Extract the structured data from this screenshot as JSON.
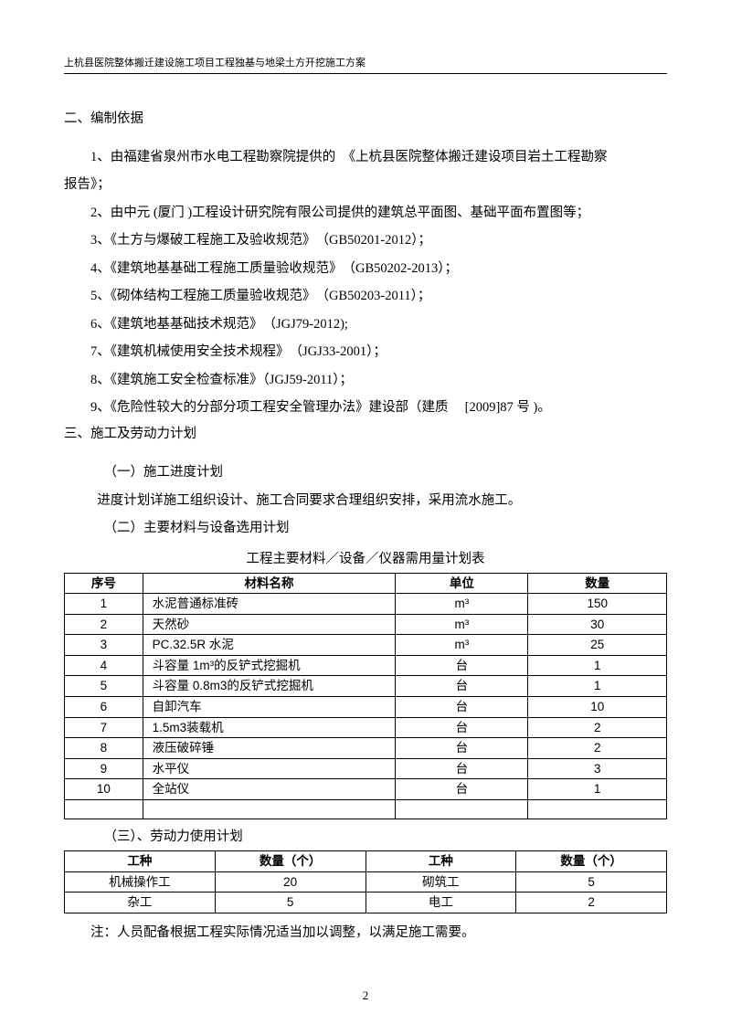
{
  "header": "上杭县医院整体搬迁建设施工项目工程独基与地梁土方开挖施工方案",
  "section2": {
    "title": "二、编制依据",
    "items": [
      {
        "line1": "1、由福建省泉州市水电工程勘察院提供的　《上杭县医院整体搬迁建设项目岩土工程勘察",
        "line2": "报告》；"
      },
      {
        "line1": "2、由中元 (厦门 )工程设计研究院有限公司提供的建筑总平面图、基础平面布置图等；"
      },
      {
        "line1": "3、《土方与爆破工程施工及验收规范》　（GB50201-2012）；"
      },
      {
        "line1": "4、《建筑地基基础工程施工质量验收规范》　（GB50202-2013）；"
      },
      {
        "line1": "5、《砌体结构工程施工质量验收规范》　（GB50203-2011）；"
      },
      {
        "line1": "6、《建筑地基基础技术规范》　（JGJ79-2012);"
      },
      {
        "line1": "7、《建筑机械使用安全技术规程》　（JGJ33-2001）；"
      },
      {
        "line1": "8、《建筑施工安全检查标准》（JGJ59-2011）；"
      },
      {
        "line1": "9、《危险性较大的分部分项工程安全管理办法》建设部（建质　 [2009]87 号 )。"
      }
    ]
  },
  "section3": {
    "title": "三、施工及劳动力计划",
    "sub1": {
      "title": "（一）施工进度计划",
      "desc": "进度计划详施工组织设计、施工合同要求合理组织安排，采用流水施工。"
    },
    "sub2": {
      "title": "（二）主要材料与设备选用计划",
      "tableTitle": "工程主要材料／设备／仪器需用量计划表"
    },
    "sub3": {
      "title": "（三）、劳动力使用计划"
    }
  },
  "materialsTable": {
    "headers": [
      "序号",
      "材料名称",
      "单位",
      "数量"
    ],
    "rows": [
      [
        "1",
        "水泥普通标准砖",
        "m³",
        "150"
      ],
      [
        "2",
        "天然砂",
        "m³",
        "30"
      ],
      [
        "3",
        "PC.32.5R 水泥",
        "m³",
        "25"
      ],
      [
        "4",
        "斗容量 1m³的反铲式挖掘机",
        "台",
        "1"
      ],
      [
        "5",
        "斗容量 0.8m3的反铲式挖掘机",
        "台",
        "1"
      ],
      [
        "6",
        "自卸汽车",
        "台",
        "10"
      ],
      [
        "7",
        "1.5m3装载机",
        "台",
        "2"
      ],
      [
        "8",
        "液压破碎锤",
        "台",
        "2"
      ],
      [
        "9",
        "水平仪",
        "台",
        "3"
      ],
      [
        "10",
        "全站仪",
        "台",
        "1"
      ],
      [
        "",
        "",
        "",
        ""
      ]
    ]
  },
  "laborTable": {
    "headers": [
      "工种",
      "数量（个）",
      "工种",
      "数量（个）"
    ],
    "rows": [
      [
        "机械操作工",
        "20",
        "砌筑工",
        "5"
      ],
      [
        "杂工",
        "5",
        "电工",
        "2"
      ]
    ]
  },
  "note": "注：人员配备根据工程实际情况适当加以调整，以满足施工需要。",
  "pageNumber": "2",
  "styling": {
    "background": "#ffffff",
    "textColor": "#000000",
    "borderColor": "#000000",
    "bodyFontSize": 14.5,
    "headerFontSize": 11,
    "tableFontSize": 13.5,
    "pageWidth": 800,
    "pageHeight": 1133
  }
}
